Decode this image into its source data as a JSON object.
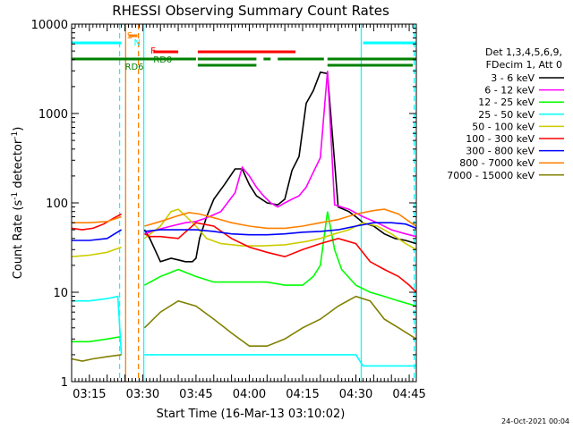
{
  "chart_data": {
    "type": "line",
    "title": "RHESSI Observing Summary Count Rates",
    "xlabel": "Start Time (16-Mar-13 03:10:02)",
    "ylabel": "Count Rate (s-1 detector-1)",
    "ylabel_parts": {
      "main": "Count Rate (s",
      "sup1": "-1",
      "mid": " detector",
      "sup2": "-1",
      "end": ")"
    },
    "yscale": "log",
    "ylim": [
      1,
      10000
    ],
    "y_ticks": [
      {
        "value": 1,
        "label": "1"
      },
      {
        "value": 10,
        "label": "10"
      },
      {
        "value": 100,
        "label": "100"
      },
      {
        "value": 1000,
        "label": "1000"
      },
      {
        "value": 10000,
        "label": "10000"
      }
    ],
    "xlim_minutes_after_0310": [
      0,
      97
    ],
    "x_ticks": [
      {
        "value": 5,
        "label": "03:15"
      },
      {
        "value": 20,
        "label": "03:30"
      },
      {
        "value": 35,
        "label": "03:45"
      },
      {
        "value": 50,
        "label": "04:00"
      },
      {
        "value": 65,
        "label": "04:15"
      },
      {
        "value": 80,
        "label": "04:30"
      },
      {
        "value": 95,
        "label": "04:45"
      }
    ],
    "legend": {
      "header": [
        "Det 1,3,4,5,6,9,",
        "FDecim 1, Att 0"
      ],
      "entries": [
        {
          "label": "3 - 6 keV",
          "color": "#000000"
        },
        {
          "label": "6 - 12 keV",
          "color": "#ff00ff"
        },
        {
          "label": "12 - 25 keV",
          "color": "#00ff00"
        },
        {
          "label": "25 - 50 keV",
          "color": "#00ffff"
        },
        {
          "label": "50 - 100 keV",
          "color": "#cccc00"
        },
        {
          "label": "100 - 300 keV",
          "color": "#ff0000"
        },
        {
          "label": "300 - 800 keV",
          "color": "#0000ff"
        },
        {
          "label": "800 - 7000 keV",
          "color": "#ff8000"
        },
        {
          "label": "7000 - 15000 keV",
          "color": "#808000"
        }
      ]
    },
    "flag_labels": {
      "saa": "S",
      "night": "N",
      "flare": "F",
      "rd0": "RD0",
      "rd6": "RD6"
    },
    "flag_colors": {
      "saa": "#ff8000",
      "night": "#00ffff",
      "flare": "#ff0000",
      "decimation": "#008000"
    },
    "flags": {
      "night": [
        [
          0,
          14
        ],
        [
          82,
          97
        ]
      ],
      "saa": [
        [
          16,
          18.5
        ]
      ],
      "flare": [
        [
          23,
          30
        ],
        [
          35.5,
          63
        ]
      ],
      "decimation": [
        [
          0,
          35
        ],
        [
          35.5,
          52
        ],
        [
          54,
          56
        ],
        [
          58,
          71
        ],
        [
          72,
          97
        ]
      ]
    },
    "vertical_markers": [
      {
        "minute": 13.5,
        "color": "#00ffff",
        "style": "dashed"
      },
      {
        "minute": 15.2,
        "color": "#ff8000",
        "style": "solid"
      },
      {
        "minute": 18.8,
        "color": "#ff8000",
        "style": "dashed"
      },
      {
        "minute": 20.3,
        "color": "#00ffff",
        "style": "solid"
      },
      {
        "minute": 81.5,
        "color": "#00ffff",
        "style": "solid"
      },
      {
        "minute": 96.4,
        "color": "#00ffff",
        "style": "dashed"
      }
    ],
    "data_gap_minutes": [
      14,
      20.5
    ],
    "series": [
      {
        "name": "3 - 6 keV",
        "color": "#000000",
        "x": [
          20.5,
          22,
          25,
          28,
          30,
          32,
          34,
          35,
          36,
          38,
          40,
          43,
          46,
          48,
          50,
          52,
          55,
          58,
          60,
          62,
          64,
          66,
          68,
          70,
          72,
          75,
          78,
          80,
          82,
          85,
          88,
          91,
          94,
          97
        ],
        "y": [
          50,
          40,
          22,
          24,
          23,
          22,
          22,
          24,
          40,
          70,
          110,
          160,
          240,
          240,
          160,
          120,
          100,
          95,
          110,
          230,
          330,
          1300,
          1800,
          2900,
          2800,
          90,
          80,
          70,
          60,
          55,
          45,
          40,
          38,
          35
        ]
      },
      {
        "name": "6 - 12 keV",
        "color": "#ff00ff",
        "x": [
          20.5,
          24,
          28,
          32,
          35,
          38,
          42,
          46,
          48,
          50,
          52,
          54,
          56,
          58,
          60,
          62,
          64,
          66,
          68,
          70,
          72,
          74,
          78,
          82,
          86,
          90,
          94,
          97
        ],
        "y": [
          45,
          50,
          55,
          60,
          62,
          68,
          80,
          130,
          250,
          200,
          150,
          120,
          100,
          90,
          100,
          110,
          120,
          150,
          220,
          320,
          3000,
          95,
          85,
          70,
          60,
          50,
          45,
          42
        ]
      },
      {
        "name": "12 - 25 keV",
        "color": "#00ff00",
        "x": [
          0,
          5,
          10,
          14,
          20.5,
          25,
          30,
          35,
          40,
          45,
          50,
          55,
          60,
          65,
          68,
          70,
          72,
          74,
          76,
          80,
          84,
          88,
          92,
          97
        ],
        "y": [
          2.8,
          2.8,
          3.0,
          3.2,
          12,
          15,
          18,
          15,
          13,
          13,
          13,
          13,
          12,
          12,
          15,
          20,
          80,
          30,
          18,
          12,
          10,
          9,
          8,
          7
        ]
      },
      {
        "name": "25 - 50 keV",
        "color": "#00ffff",
        "x": [
          0,
          5,
          10,
          13,
          14,
          20.5,
          25,
          30,
          35,
          40,
          45,
          50,
          55,
          60,
          65,
          70,
          75,
          80,
          82,
          88,
          92,
          97
        ],
        "y": [
          8,
          8,
          8.5,
          9,
          2,
          2,
          2,
          2,
          2,
          2,
          2,
          2,
          2,
          2,
          2,
          2,
          2,
          2,
          1.5,
          1.5,
          1.5,
          1.5
        ]
      },
      {
        "name": "50 - 100 keV",
        "color": "#cccc00",
        "x": [
          0,
          5,
          10,
          14,
          20.5,
          25,
          28,
          30,
          32,
          35,
          38,
          42,
          48,
          54,
          60,
          66,
          70,
          74,
          78,
          82,
          86,
          90,
          94,
          97
        ],
        "y": [
          25,
          26,
          28,
          32,
          40,
          55,
          80,
          85,
          72,
          55,
          40,
          35,
          33,
          33,
          34,
          37,
          40,
          45,
          50,
          60,
          55,
          45,
          35,
          30
        ]
      },
      {
        "name": "100 - 300 keV",
        "color": "#ff0000",
        "x": [
          0,
          3,
          6,
          9,
          12,
          14,
          20.5,
          22,
          25,
          30,
          35,
          40,
          45,
          50,
          55,
          60,
          65,
          70,
          75,
          80,
          84,
          88,
          92,
          95,
          97
        ],
        "y": [
          52,
          50,
          52,
          58,
          68,
          75,
          45,
          42,
          42,
          40,
          60,
          55,
          40,
          32,
          28,
          25,
          30,
          35,
          40,
          35,
          22,
          18,
          15,
          12,
          10
        ]
      },
      {
        "name": "300 - 800 keV",
        "color": "#0000ff",
        "x": [
          0,
          5,
          10,
          14,
          20.5,
          25,
          30,
          35,
          40,
          45,
          50,
          55,
          60,
          65,
          70,
          75,
          80,
          85,
          90,
          94,
          97
        ],
        "y": [
          38,
          38,
          40,
          50,
          48,
          50,
          50,
          50,
          48,
          45,
          44,
          44,
          45,
          47,
          48,
          50,
          55,
          60,
          60,
          58,
          52
        ]
      },
      {
        "name": "800 - 7000 keV",
        "color": "#ff8000",
        "x": [
          0,
          5,
          10,
          14,
          20.5,
          25,
          30,
          33,
          36,
          40,
          45,
          50,
          55,
          60,
          65,
          70,
          75,
          80,
          85,
          88,
          92,
          96,
          97
        ],
        "y": [
          60,
          60,
          62,
          70,
          55,
          62,
          72,
          78,
          75,
          68,
          60,
          55,
          52,
          52,
          55,
          60,
          65,
          75,
          82,
          85,
          75,
          58,
          55
        ]
      },
      {
        "name": "7000 - 15000 keV",
        "color": "#808000",
        "x": [
          0,
          3,
          6,
          10,
          14,
          20.5,
          25,
          30,
          35,
          40,
          45,
          50,
          55,
          60,
          65,
          70,
          75,
          80,
          84,
          88,
          92,
          97
        ],
        "y": [
          1.8,
          1.7,
          1.8,
          1.9,
          2.0,
          4,
          6,
          8,
          7,
          5,
          3.5,
          2.5,
          2.5,
          3,
          4,
          5,
          7,
          9,
          8,
          5,
          4,
          3
        ]
      }
    ],
    "grid": false,
    "legend_position": "right"
  },
  "footer_date": "24-Oct-2021 00:04"
}
